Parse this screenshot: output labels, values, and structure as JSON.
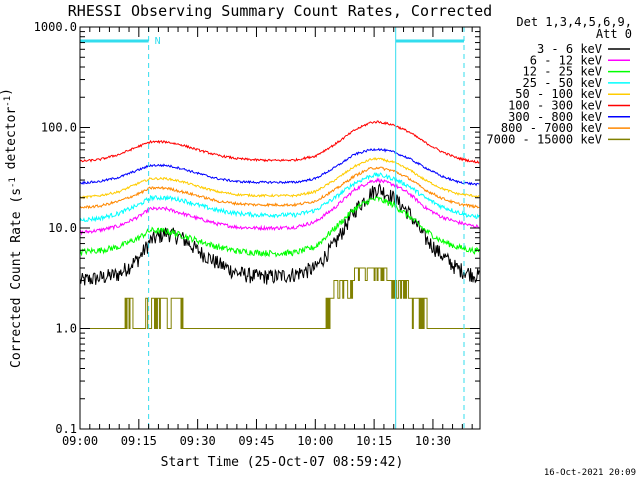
{
  "chart_data": {
    "type": "line",
    "title": "RHESSI Observing Summary Count Rates, Corrected",
    "xlabel": "Start Time (25-Oct-07 08:59:42)",
    "ylabel": "Corrected Count Rate (s⁻¹ detector⁻¹)",
    "yscale": "log",
    "ylim": [
      0.1,
      1000
    ],
    "xlim_minutes": [
      0,
      102
    ],
    "x_tick_labels": [
      "09:00",
      "09:15",
      "09:30",
      "09:45",
      "10:00",
      "10:15",
      "10:30"
    ],
    "x_tick_minutes": [
      0,
      15,
      30,
      45,
      60,
      75,
      90
    ],
    "y_tick_labels": [
      "0.1",
      "1.0",
      "10.0",
      "100.0",
      "1000.0"
    ],
    "y_tick_values": [
      0.1,
      1,
      10,
      100,
      1000
    ],
    "legend_header": [
      "Det 1,3,4,5,6,9,",
      "Att 0"
    ],
    "timestamp": "16-Oct-2021 20:09",
    "markers": {
      "night_label": "N",
      "night_intervals_minutes": [
        [
          0,
          17.5
        ],
        [
          80.5,
          102
        ]
      ],
      "dashed_lines_minutes": [
        17.5,
        102
      ],
      "solid_lines_minutes": [
        0,
        80.5
      ]
    },
    "series": [
      {
        "name": "3 - 6 keV",
        "color": "#000000",
        "noise": 0.18,
        "x": [
          0,
          5,
          10,
          15,
          18,
          22,
          26,
          30,
          35,
          40,
          45,
          50,
          55,
          60,
          65,
          70,
          74,
          76,
          80,
          84,
          88,
          92,
          96,
          100,
          102
        ],
        "y": [
          3.0,
          3.2,
          3.5,
          5.0,
          7.5,
          9.0,
          8.0,
          6.0,
          4.5,
          3.6,
          3.3,
          3.3,
          3.5,
          4.0,
          7.0,
          15,
          22,
          25,
          20,
          14,
          8.0,
          5.5,
          4.0,
          3.5,
          3.3
        ]
      },
      {
        "name": "6 - 12 keV",
        "color": "#ff00ff",
        "noise": 0.04,
        "x": [
          0,
          5,
          10,
          15,
          18,
          22,
          26,
          30,
          35,
          40,
          45,
          50,
          55,
          60,
          65,
          70,
          74,
          76,
          80,
          84,
          88,
          92,
          96,
          100,
          102
        ],
        "y": [
          9.0,
          9.5,
          10.5,
          13,
          15.5,
          15.5,
          14,
          12.5,
          11,
          10.2,
          10,
          10,
          10.2,
          11.5,
          16,
          24,
          29,
          30,
          27,
          22,
          16,
          13,
          11.5,
          10.5,
          10.3
        ]
      },
      {
        "name": "12 - 25 keV",
        "color": "#00ff00",
        "noise": 0.07,
        "x": [
          0,
          5,
          10,
          15,
          18,
          22,
          26,
          30,
          35,
          40,
          45,
          50,
          55,
          60,
          65,
          70,
          74,
          76,
          80,
          84,
          88,
          92,
          96,
          100,
          102
        ],
        "y": [
          5.8,
          6.0,
          6.5,
          8.0,
          9.5,
          9.3,
          8.5,
          7.5,
          6.5,
          5.9,
          5.7,
          5.6,
          5.7,
          6.5,
          10,
          15.5,
          19,
          19.5,
          17,
          13,
          9.5,
          7.5,
          6.5,
          6.0,
          5.9
        ]
      },
      {
        "name": "25 - 50 keV",
        "color": "#00ffff",
        "noise": 0.05,
        "x": [
          0,
          5,
          10,
          15,
          18,
          22,
          26,
          30,
          35,
          40,
          45,
          50,
          55,
          60,
          65,
          70,
          74,
          76,
          80,
          84,
          88,
          92,
          96,
          100,
          102
        ],
        "y": [
          12,
          12.5,
          14,
          17,
          20,
          20,
          19,
          17,
          15,
          14,
          13.5,
          13.5,
          13.5,
          15,
          20,
          28,
          33,
          34,
          31,
          26,
          20,
          16.5,
          14.5,
          13,
          13
        ]
      },
      {
        "name": "50 - 100 keV",
        "color": "#ffcc00",
        "noise": 0.025,
        "x": [
          0,
          5,
          10,
          15,
          18,
          22,
          26,
          30,
          35,
          40,
          45,
          50,
          55,
          60,
          65,
          70,
          74,
          76,
          80,
          84,
          88,
          92,
          96,
          100,
          102
        ],
        "y": [
          20,
          21,
          23,
          28,
          31,
          31,
          29,
          26,
          23,
          21.5,
          21,
          21,
          21,
          23,
          30,
          41,
          48,
          49,
          45,
          38,
          30,
          25,
          22,
          21,
          20.5
        ]
      },
      {
        "name": "100 - 300 keV",
        "color": "#ff0000",
        "noise": 0.025,
        "x": [
          0,
          5,
          10,
          15,
          18,
          22,
          26,
          30,
          35,
          40,
          45,
          50,
          55,
          60,
          65,
          70,
          74,
          76,
          80,
          84,
          88,
          92,
          96,
          100,
          102
        ],
        "y": [
          46,
          48,
          54,
          65,
          72,
          72,
          67,
          60,
          53,
          49,
          47.5,
          47,
          47.5,
          52,
          68,
          94,
          112,
          114,
          106,
          90,
          71,
          58,
          50,
          46,
          45
        ]
      },
      {
        "name": "300 - 800 keV",
        "color": "#0000ff",
        "noise": 0.025,
        "x": [
          0,
          5,
          10,
          15,
          18,
          22,
          26,
          30,
          35,
          40,
          45,
          50,
          55,
          60,
          65,
          70,
          74,
          76,
          80,
          84,
          88,
          92,
          96,
          100,
          102
        ],
        "y": [
          28,
          29,
          32,
          38,
          42,
          42,
          39,
          35,
          31,
          29,
          28.5,
          28.5,
          28.5,
          31,
          40,
          54,
          60,
          61,
          57,
          49,
          40,
          33,
          29,
          27.5,
          27
        ]
      },
      {
        "name": "800 - 7000 keV",
        "color": "#ff8800",
        "noise": 0.03,
        "x": [
          0,
          5,
          10,
          15,
          18,
          22,
          26,
          30,
          35,
          40,
          45,
          50,
          55,
          60,
          65,
          70,
          74,
          76,
          80,
          84,
          88,
          92,
          96,
          100,
          102
        ],
        "y": [
          16,
          16.5,
          18.5,
          22,
          25,
          25,
          23,
          21,
          18.5,
          17.5,
          17,
          17,
          17,
          18.5,
          24,
          33,
          39,
          40,
          37,
          31,
          24,
          20,
          17.5,
          16.5,
          16
        ]
      },
      {
        "name": "7000 - 15000 keV",
        "color": "#808000",
        "noise": 0.0,
        "x": [
          0,
          5,
          10,
          12.5,
          14.5,
          18,
          25,
          30,
          38,
          45,
          55,
          60,
          62,
          63,
          66,
          70,
          73,
          74,
          78,
          82,
          86,
          88,
          90,
          92,
          95,
          100,
          102
        ],
        "y": [
          1.0,
          1.0,
          1.0,
          2.0,
          1.0,
          2.0,
          2.0,
          1.0,
          1.0,
          1.0,
          1.0,
          1.0,
          1.0,
          2.0,
          3.0,
          3.5,
          4.0,
          4.0,
          3.5,
          3.0,
          2.0,
          2.0,
          1.0,
          1.0,
          1.0,
          1.0,
          1.0
        ]
      }
    ]
  }
}
